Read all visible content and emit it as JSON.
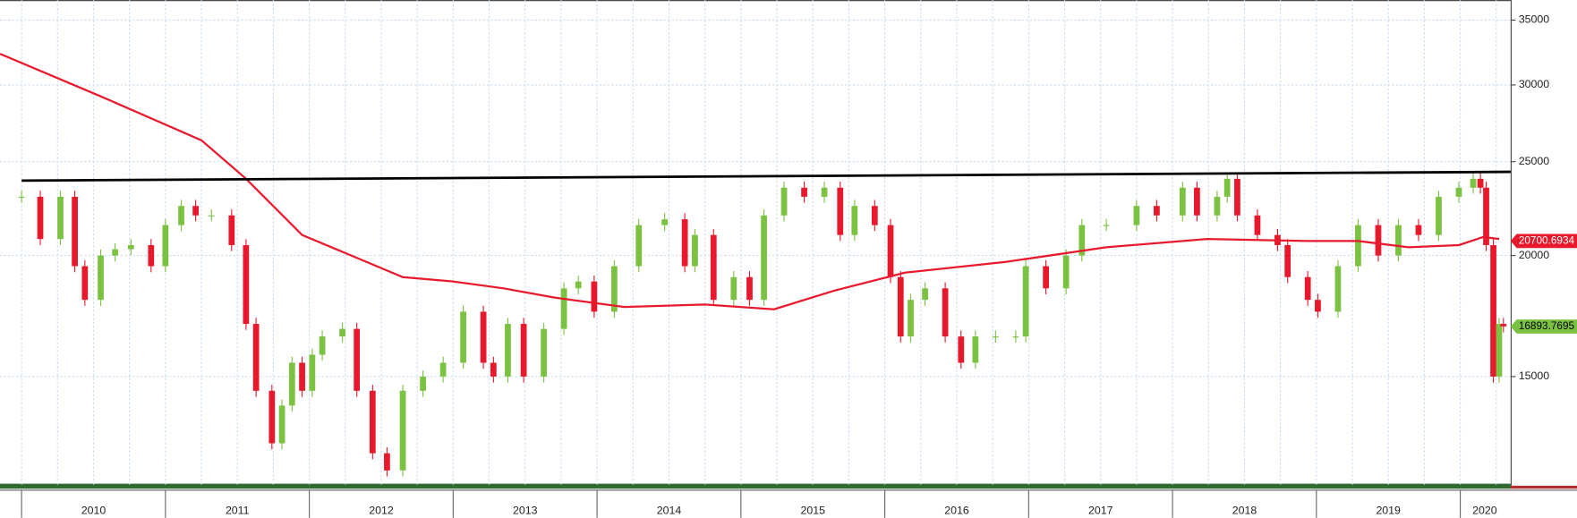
{
  "chart_data": {
    "type": "price-bars",
    "log_scale": true,
    "grid": true,
    "xlim": [
      2009.85,
      2020.35
    ],
    "ylim": [
      11600,
      36700
    ],
    "yticks": [
      15000,
      20000,
      25000,
      30000,
      35000
    ],
    "xticks": [
      {
        "value": 2010.5,
        "label": "2010"
      },
      {
        "value": 2011.5,
        "label": "2011"
      },
      {
        "value": 2012.5,
        "label": "2012"
      },
      {
        "value": 2013.5,
        "label": "2013"
      },
      {
        "value": 2014.5,
        "label": "2014"
      },
      {
        "value": 2015.5,
        "label": "2015"
      },
      {
        "value": 2016.5,
        "label": "2016"
      },
      {
        "value": 2017.5,
        "label": "2017"
      },
      {
        "value": 2018.5,
        "label": "2018"
      },
      {
        "value": 2019.5,
        "label": "2019"
      },
      {
        "value": 2020.17,
        "label": "2020"
      }
    ],
    "series": [
      {
        "color": "#7cc242",
        "down_color": "#e8192c",
        "last_value": 16893.7695,
        "x": [
          2010.0,
          2010.13,
          2010.27,
          2010.37,
          2010.44,
          2010.55,
          2010.65,
          2010.76,
          2010.9,
          2011.0,
          2011.11,
          2011.21,
          2011.32,
          2011.46,
          2011.56,
          2011.63,
          2011.74,
          2011.81,
          2011.88,
          2011.95,
          2012.02,
          2012.09,
          2012.23,
          2012.33,
          2012.44,
          2012.54,
          2012.65,
          2012.79,
          2012.93,
          2013.07,
          2013.21,
          2013.28,
          2013.38,
          2013.49,
          2013.63,
          2013.77,
          2013.87,
          2013.98,
          2014.12,
          2014.29,
          2014.47,
          2014.61,
          2014.68,
          2014.81,
          2014.95,
          2015.06,
          2015.16,
          2015.3,
          2015.44,
          2015.58,
          2015.69,
          2015.79,
          2015.93,
          2016.04,
          2016.11,
          2016.18,
          2016.28,
          2016.42,
          2016.53,
          2016.63,
          2016.77,
          2016.91,
          2016.98,
          2017.12,
          2017.26,
          2017.37,
          2017.54,
          2017.75,
          2017.89,
          2018.07,
          2018.17,
          2018.31,
          2018.38,
          2018.45,
          2018.59,
          2018.73,
          2018.8,
          2018.94,
          2019.01,
          2019.15,
          2019.29,
          2019.43,
          2019.57,
          2019.71,
          2019.85,
          2019.99,
          2020.09,
          2020.14,
          2020.18,
          2020.23,
          2020.27,
          2020.3
        ],
        "values": [
          23000,
          20800,
          23000,
          19500,
          18000,
          20000,
          20300,
          20500,
          19500,
          21500,
          22500,
          22000,
          22000,
          20500,
          17000,
          14500,
          12800,
          14000,
          15500,
          14500,
          15800,
          16500,
          16800,
          14500,
          12500,
          12000,
          14500,
          15000,
          15500,
          17500,
          15500,
          15000,
          17000,
          15000,
          16800,
          18500,
          18800,
          17500,
          19500,
          21500,
          21800,
          19500,
          21000,
          18000,
          19000,
          18000,
          22000,
          23500,
          23000,
          23500,
          21000,
          22500,
          21500,
          19000,
          16500,
          18000,
          18500,
          16500,
          15500,
          16500,
          16500,
          16500,
          19500,
          18500,
          20000,
          21500,
          21500,
          22500,
          22000,
          23500,
          22000,
          23000,
          24000,
          22000,
          21000,
          20500,
          19000,
          18000,
          17500,
          19500,
          21500,
          20000,
          21500,
          21000,
          23000,
          23500,
          24000,
          23500,
          20500,
          15000,
          17000,
          16900
        ]
      },
      {
        "color": "#e8192c",
        "last_value": 20700.6934,
        "x": [
          2009.85,
          2010.55,
          2011.25,
          2011.56,
          2011.95,
          2012.65,
          2013.0,
          2013.35,
          2013.7,
          2014.19,
          2014.75,
          2015.23,
          2015.65,
          2016.14,
          2016.84,
          2017.54,
          2018.24,
          2018.94,
          2019.29,
          2019.64,
          2019.99,
          2020.16,
          2020.27
        ],
        "values": [
          32300,
          29200,
          26300,
          24000,
          21000,
          19000,
          18800,
          18500,
          18100,
          17700,
          17800,
          17600,
          18400,
          19200,
          19700,
          20400,
          20800,
          20700,
          20700,
          20400,
          20500,
          20900,
          20800
        ]
      }
    ],
    "trendline": {
      "color": "#000000",
      "x": [
        2010.0,
        2020.35
      ],
      "values": [
        23900,
        24400
      ]
    }
  }
}
